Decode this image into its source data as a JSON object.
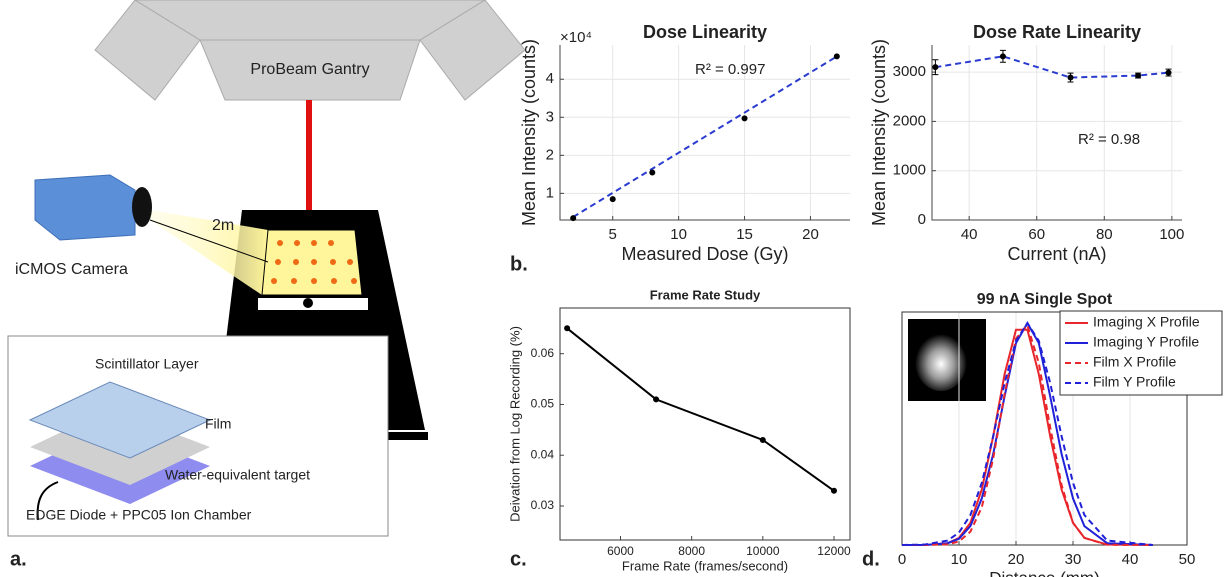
{
  "diagram": {
    "gantry": "ProBeam Gantry",
    "distance": "2m",
    "camera": "iCMOS Camera",
    "layers": [
      "Scintillator Layer",
      "Film",
      "Water-equivalent target"
    ],
    "detector": "EDGE Diode + PPC05 Ion Chamber"
  },
  "panel_labels": [
    "a.",
    "b.",
    "c.",
    "d."
  ],
  "chart_data": [
    {
      "type": "scatter",
      "title": "Dose Linearity",
      "multiplier": "×10⁴",
      "annotation": "R² = 0.997",
      "x_label": "Measured Dose (Gy)",
      "y_label": "Mean Intensity (counts)",
      "x": [
        2,
        5,
        8,
        15,
        22
      ],
      "values": [
        0.35,
        0.85,
        1.55,
        2.97,
        4.6
      ],
      "color": "#000000",
      "fit": {
        "x": [
          2,
          22
        ],
        "values": [
          0.38,
          4.6
        ],
        "color": "#2a3bd0",
        "line_style": "dashed"
      },
      "xlim": [
        1,
        23
      ],
      "ylim": [
        0.3,
        4.9
      ],
      "xticks": [
        5,
        10,
        15,
        20
      ],
      "yticks": [
        1,
        2,
        3,
        4
      ],
      "grid": true,
      "box": false
    },
    {
      "type": "scatter",
      "title": "Dose Rate Linearity",
      "annotation": "R² = 0.98",
      "x_label": "Current (nA)",
      "y_label": "Mean Intensity (counts)",
      "x": [
        30,
        50,
        70,
        90,
        99
      ],
      "values": [
        3100,
        3320,
        2890,
        2930,
        2990
      ],
      "errors": [
        150,
        120,
        90,
        50,
        70
      ],
      "color": "#000000",
      "line_color": "#2a3bd0",
      "line_style": "dashed",
      "xlim": [
        29,
        103
      ],
      "ylim": [
        0,
        3550
      ],
      "xticks": [
        40,
        60,
        80,
        100
      ],
      "yticks": [
        0,
        1000,
        2000,
        3000
      ],
      "grid": true,
      "box": false
    },
    {
      "type": "line",
      "title": "Frame Rate Study",
      "x_label": "Frame Rate (frames/second)",
      "y_label": "Deivation from Log Recording (%)",
      "x": [
        4500,
        7000,
        10000,
        12000
      ],
      "values": [
        0.065,
        0.051,
        0.043,
        0.033
      ],
      "color": "#000000",
      "line_color": "#000000",
      "line_style": "solid",
      "xlim": [
        4300,
        12450
      ],
      "ylim": [
        0.0233,
        0.069
      ],
      "xticks": [
        6000,
        8000,
        10000,
        12000
      ],
      "yticks": [
        0.03,
        0.04,
        0.05,
        0.06
      ],
      "grid": false,
      "box": true
    },
    {
      "type": "profile",
      "title": "99 nA Single Spot",
      "x_label": "Distance (mm)",
      "x": [
        0,
        4,
        8,
        10,
        12,
        14,
        16,
        18,
        20,
        22,
        24,
        26,
        28,
        30,
        32,
        36,
        44
      ],
      "series": [
        {
          "name": "Imaging X Profile",
          "color": "#e8262b",
          "line_style": "solid",
          "values": [
            0,
            0,
            0.008,
            0.032,
            0.1,
            0.25,
            0.49,
            0.77,
            0.97,
            0.97,
            0.77,
            0.49,
            0.25,
            0.1,
            0.032,
            0.002,
            0
          ]
        },
        {
          "name": "Imaging Y Profile",
          "color": "#2020d8",
          "line_style": "solid",
          "values": [
            0,
            0,
            0.008,
            0.028,
            0.085,
            0.21,
            0.41,
            0.67,
            0.91,
            1,
            0.91,
            0.67,
            0.41,
            0.21,
            0.085,
            0.008,
            0
          ]
        },
        {
          "name": "Film X Profile",
          "color": "#e8262b",
          "line_style": "dashed",
          "values": [
            0,
            0,
            0.003,
            0.016,
            0.06,
            0.17,
            0.39,
            0.68,
            0.93,
            0.99,
            0.82,
            0.53,
            0.27,
            0.1,
            0.032,
            0.001,
            0
          ]
        },
        {
          "name": "Film Y Profile",
          "color": "#2020d8",
          "line_style": "dashed",
          "values": [
            0,
            0.002,
            0.02,
            0.056,
            0.135,
            0.28,
            0.49,
            0.73,
            0.92,
            1,
            0.92,
            0.73,
            0.49,
            0.28,
            0.135,
            0.02,
            0
          ]
        }
      ],
      "xlim": [
        0,
        50
      ],
      "ylim": [
        0,
        1.05
      ],
      "xticks": [
        0,
        10,
        20,
        30,
        40,
        50
      ],
      "grid": true,
      "box": true,
      "legend": "top-right"
    }
  ]
}
